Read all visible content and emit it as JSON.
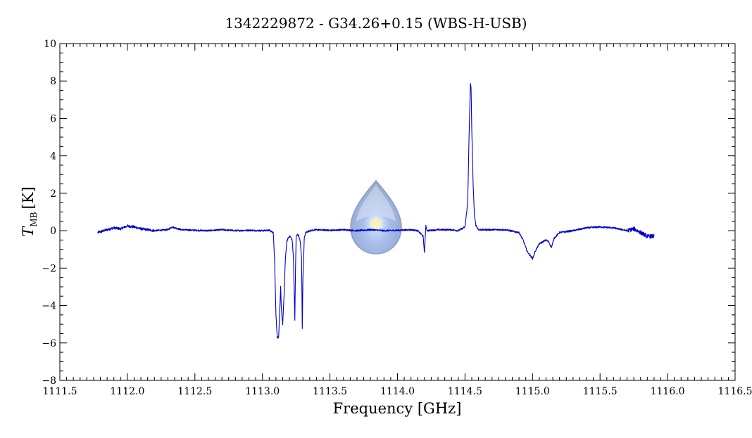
{
  "chart_data": {
    "type": "line",
    "title": "1342229872 - G34.26+0.15 (WBS-H-USB)",
    "xlabel": "Frequency [GHz]",
    "ylabel_main": "T",
    "ylabel_sub": "MB",
    "ylabel_unit": "[K]",
    "xlim": [
      1111.5,
      1116.5
    ],
    "ylim": [
      -8,
      10
    ],
    "xticks": [
      1111.5,
      1112.0,
      1112.5,
      1113.0,
      1113.5,
      1114.0,
      1114.5,
      1115.0,
      1115.5,
      1116.0,
      1116.5
    ],
    "xtick_labels": [
      "1111.5",
      "1112.0",
      "1112.5",
      "1113.0",
      "1113.5",
      "1114.0",
      "1114.5",
      "1115.0",
      "1115.5",
      "1116.0",
      "1116.5"
    ],
    "yticks": [
      -8,
      -6,
      -4,
      -2,
      0,
      2,
      4,
      6,
      8,
      10
    ],
    "ytick_labels": [
      "−8",
      "−6",
      "−4",
      "−2",
      "0",
      "2",
      "4",
      "6",
      "8",
      "10"
    ],
    "grid": false,
    "line_color": "#0000cc",
    "watermark_icon": "herschel-drop-logo",
    "series": [
      {
        "x": [
          1111.78,
          1111.85,
          1111.9,
          1111.95,
          1112.0,
          1112.05,
          1112.1,
          1112.15,
          1112.2,
          1112.3,
          1112.33,
          1112.4,
          1112.5,
          1112.6,
          1112.7,
          1112.8,
          1112.9,
          1113.0,
          1113.05,
          1113.08,
          1113.09,
          1113.1,
          1113.11,
          1113.12,
          1113.13,
          1113.135,
          1113.14,
          1113.15,
          1113.16,
          1113.165,
          1113.17,
          1113.18,
          1113.19,
          1113.2,
          1113.21,
          1113.22,
          1113.23,
          1113.24,
          1113.245,
          1113.25,
          1113.26,
          1113.27,
          1113.28,
          1113.29,
          1113.295,
          1113.3,
          1113.31,
          1113.32,
          1113.35,
          1113.4,
          1113.5,
          1113.6,
          1113.7,
          1113.8,
          1113.9,
          1114.0,
          1114.1,
          1114.15,
          1114.19,
          1114.2,
          1114.205,
          1114.21,
          1114.22,
          1114.3,
          1114.4,
          1114.45,
          1114.5,
          1114.52,
          1114.53,
          1114.54,
          1114.545,
          1114.55,
          1114.56,
          1114.57,
          1114.58,
          1114.6,
          1114.7,
          1114.8,
          1114.9,
          1114.93,
          1114.96,
          1114.98,
          1115.0,
          1115.02,
          1115.05,
          1115.1,
          1115.12,
          1115.14,
          1115.16,
          1115.2,
          1115.3,
          1115.4,
          1115.5,
          1115.6,
          1115.7,
          1115.75,
          1115.8,
          1115.85,
          1115.9
        ],
        "y": [
          -0.1,
          0.05,
          0.15,
          0.1,
          0.25,
          0.2,
          0.1,
          0.05,
          0.0,
          0.05,
          0.2,
          0.05,
          0.02,
          0.0,
          0.05,
          0.0,
          0.02,
          0.0,
          0.02,
          -0.1,
          -1.5,
          -4.5,
          -5.7,
          -5.7,
          -4.0,
          -3.0,
          -4.2,
          -5.0,
          -3.5,
          -2.5,
          -1.5,
          -0.6,
          -0.4,
          -0.3,
          -0.35,
          -0.5,
          -1.5,
          -4.8,
          -2.0,
          -0.3,
          -0.2,
          -0.3,
          -0.6,
          -1.5,
          -5.2,
          -2.5,
          -0.4,
          -0.1,
          0.0,
          0.05,
          0.02,
          0.05,
          0.0,
          0.05,
          0.0,
          0.02,
          0.05,
          0.0,
          -0.3,
          -1.2,
          -0.4,
          0.25,
          0.0,
          0.05,
          0.05,
          0.0,
          0.2,
          1.5,
          5.0,
          7.9,
          7.6,
          5.5,
          2.5,
          0.8,
          0.3,
          0.05,
          0.05,
          0.05,
          -0.1,
          -0.5,
          -1.1,
          -1.3,
          -1.5,
          -1.1,
          -0.7,
          -0.5,
          -0.6,
          -0.9,
          -0.4,
          -0.1,
          0.0,
          0.15,
          0.2,
          0.15,
          0.0,
          0.1,
          -0.1,
          -0.3,
          -0.3
        ]
      }
    ]
  }
}
